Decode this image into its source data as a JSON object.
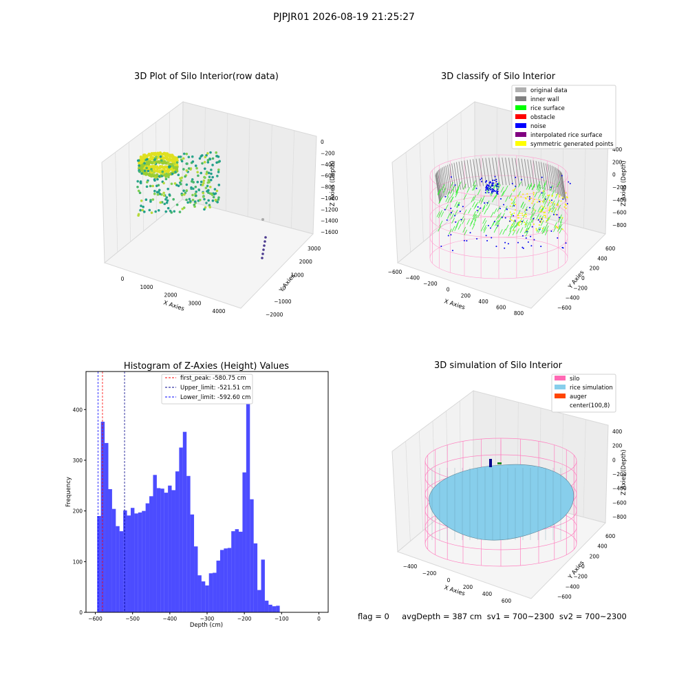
{
  "suptitle": "PJPJR01 2026-08-19 21:25:27",
  "panels": {
    "raw": {
      "title": "3D Plot of Silo Interior(row data)",
      "xlabel": "X Axies",
      "ylabel": "Y Axies",
      "zlabel": "Z Axies (Depth)",
      "x_ticks": [
        "0",
        "1000",
        "2000",
        "3000",
        "4000"
      ],
      "y_ticks": [
        "−2000",
        "−1000",
        "0",
        "1000",
        "2000",
        "3000"
      ],
      "z_ticks": [
        "0",
        "−200",
        "−400",
        "−600",
        "−800",
        "−1000",
        "−1200",
        "−1400",
        "−1600"
      ]
    },
    "classify": {
      "title": "3D classify of Silo Interior",
      "xlabel": "X Axies",
      "ylabel": "Y Axies",
      "zlabel": "Z Axies (Depth)",
      "x_ticks": [
        "−600",
        "−400",
        "−200",
        "0",
        "200",
        "400",
        "600",
        "800"
      ],
      "y_ticks": [
        "−600",
        "−400",
        "−200",
        "0",
        "200",
        "400",
        "600"
      ],
      "z_ticks": [
        "400",
        "200",
        "0",
        "−200",
        "−400",
        "−600",
        "−800"
      ],
      "legend": [
        {
          "label": "original data",
          "color": "#b0b0b0"
        },
        {
          "label": "inner wall",
          "color": "#808080"
        },
        {
          "label": "rice surface",
          "color": "#00ff00"
        },
        {
          "label": "obstacle",
          "color": "#ff0000"
        },
        {
          "label": "noise",
          "color": "#0000ff"
        },
        {
          "label": "interpolated rice surface",
          "color": "#800080"
        },
        {
          "label": "symmetric generated points",
          "color": "#ffff00"
        }
      ]
    },
    "simulation": {
      "title": "3D simulation of Silo Interior",
      "xlabel": "X Axies",
      "ylabel": "Y Axies",
      "zlabel": "Z Axies (Depth)",
      "x_ticks": [
        "−400",
        "−200",
        "0",
        "200",
        "400",
        "600"
      ],
      "y_ticks": [
        "−600",
        "−400",
        "−200",
        "0",
        "200",
        "400",
        "600"
      ],
      "z_ticks": [
        "400",
        "200",
        "0",
        "−200",
        "−400",
        "−600",
        "−800"
      ],
      "legend": [
        {
          "label": "silo",
          "color": "#ff69b4"
        },
        {
          "label": "rice simulation",
          "color": "#87ceeb"
        },
        {
          "label": "auger",
          "color": "#ff4500"
        },
        {
          "label": "center(100,8)",
          "color": "#ffffff"
        }
      ]
    }
  },
  "status_text": "flag = 0     avgDepth = 387 cm  sv1 = 700~2300  sv2 = 700~2300",
  "chart_data": [
    {
      "type": "bar",
      "title": "Histogram of Z-Axies (Height) Values",
      "xlabel": "Depth (cm)",
      "ylabel": "Frequency",
      "xlim": [
        -625,
        25
      ],
      "ylim": [
        0,
        475
      ],
      "x_ticks": [
        -600,
        -500,
        -400,
        -300,
        -200,
        -100,
        0
      ],
      "x_tick_labels": [
        "−600",
        "−500",
        "−400",
        "−300",
        "−200",
        "−100",
        "0"
      ],
      "y_ticks": [
        0,
        100,
        200,
        300,
        400
      ],
      "bar_color": "#0000ff",
      "bin_start": -595,
      "bin_width": 10,
      "values": [
        190,
        376,
        334,
        243,
        204,
        170,
        160,
        201,
        191,
        206,
        195,
        197,
        200,
        215,
        229,
        271,
        245,
        244,
        236,
        250,
        241,
        278,
        325,
        356,
        269,
        193,
        130,
        73,
        61,
        53,
        77,
        78,
        102,
        123,
        126,
        127,
        160,
        164,
        159,
        276,
        453,
        223,
        136,
        44,
        104,
        23,
        15,
        12,
        13
      ],
      "vlines": [
        {
          "label": "first_peak: -580.75 cm",
          "x": -580.75,
          "color": "#ff0000"
        },
        {
          "label": "Upper_limit: -521.51 cm",
          "x": -521.51,
          "color": "#00008b"
        },
        {
          "label": "Lower_limit: -592.60 cm",
          "x": -592.6,
          "color": "#0000ff"
        }
      ],
      "legend_position": "top-center"
    }
  ]
}
